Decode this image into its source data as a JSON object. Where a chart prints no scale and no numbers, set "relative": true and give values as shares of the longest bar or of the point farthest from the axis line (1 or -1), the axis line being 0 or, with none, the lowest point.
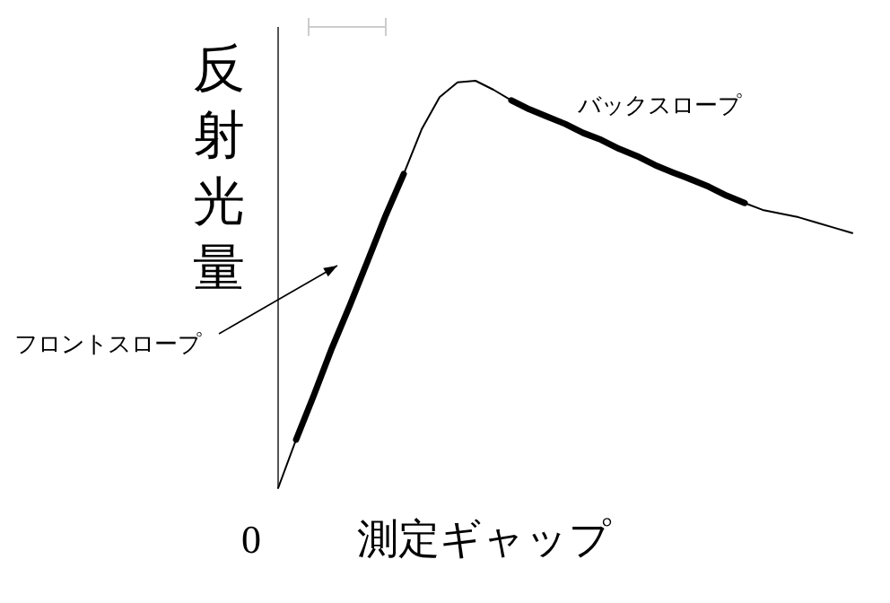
{
  "chart_data": {
    "type": "line",
    "relative": true,
    "xlabel": "測定ギャップ",
    "ylabel": "反射光量",
    "categories": [
      null,
      null,
      null,
      null,
      null,
      null,
      null,
      null,
      null,
      null,
      null,
      null,
      null,
      null,
      null,
      null,
      null,
      null,
      null,
      null,
      null,
      null,
      null,
      null,
      null,
      null,
      null,
      null,
      null,
      null,
      null,
      null,
      null
    ],
    "series": [
      {
        "color": "#000000",
        "values": [
          0,
          0.119,
          0.229,
          0.344,
          0.449,
          0.559,
          0.67,
          0.771,
          0.881,
          0.96,
          0.996,
          1,
          0.978,
          0.952,
          0.93,
          0.912,
          0.894,
          0.872,
          0.855,
          0.833,
          0.815,
          0.793,
          0.775,
          0.758,
          0.74,
          0.718,
          0.7,
          0.683,
          0.674,
          0.665,
          0.652,
          0.639,
          0.626
        ]
      },
      {
        "color": "#000000",
        "values": [
          null,
          0.119,
          0.229,
          0.344,
          0.449,
          0.559,
          0.67,
          0.771,
          null,
          null,
          null,
          null,
          null,
          null,
          null,
          null,
          null,
          null,
          null,
          null,
          null,
          null,
          null,
          null,
          null,
          null,
          null,
          null,
          null,
          null,
          null,
          null,
          null
        ]
      },
      {
        "color": "#000000",
        "values": [
          null,
          null,
          null,
          null,
          null,
          null,
          null,
          null,
          null,
          null,
          null,
          null,
          null,
          0.952,
          0.93,
          0.912,
          0.894,
          0.872,
          0.855,
          0.833,
          0.815,
          0.793,
          0.775,
          0.758,
          0.74,
          0.718,
          0.7,
          null,
          null,
          null,
          null,
          null,
          null
        ]
      }
    ],
    "annotations": [
      "フロントスロープ",
      "バックスロープ",
      "0"
    ]
  }
}
